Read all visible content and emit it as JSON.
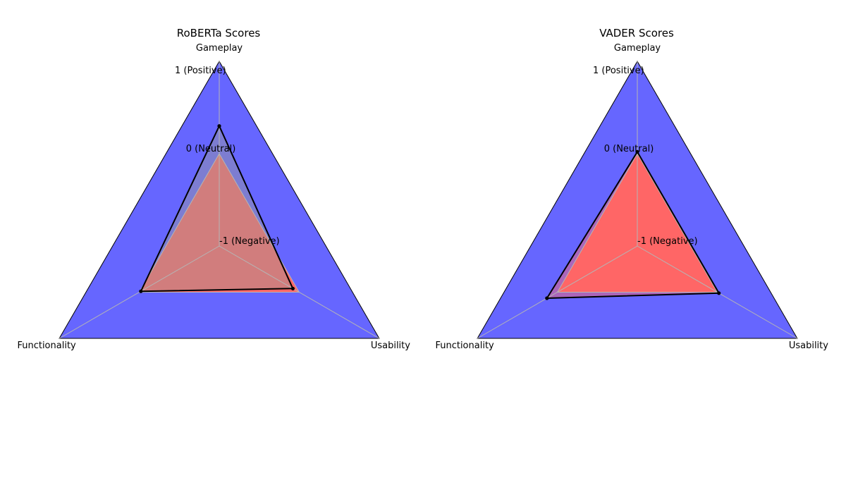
{
  "chart_data": [
    {
      "type": "radar",
      "title": "RoBERTa Scores",
      "axes": [
        "Gameplay",
        "Usability",
        "Functionality"
      ],
      "range": [
        -1,
        1
      ],
      "tick_values": [
        -1,
        0,
        1
      ],
      "tick_labels": [
        "-1 (Negative)",
        "0 (Neutral)",
        "1 (Positive)"
      ],
      "series": [
        {
          "values": [
            0.3,
            -0.08,
            -0.02
          ],
          "style": "black line with dots"
        }
      ],
      "background_fill": {
        "color": "#6666ff",
        "value": 1
      },
      "neutral_fill": {
        "color": "#ff6666",
        "value": 0
      },
      "overlay_fill": {
        "color": "#999999",
        "opacity": 0.45
      }
    },
    {
      "type": "radar",
      "title": "VADER Scores",
      "axes": [
        "Gameplay",
        "Usability",
        "Functionality"
      ],
      "range": [
        -1,
        1
      ],
      "tick_values": [
        -1,
        0,
        1
      ],
      "tick_labels": [
        "-1 (Negative)",
        "0 (Neutral)",
        "1 (Positive)"
      ],
      "series": [
        {
          "values": [
            0.02,
            0.02,
            0.13
          ],
          "style": "black line with dots"
        }
      ],
      "background_fill": {
        "color": "#6666ff",
        "value": 1
      },
      "neutral_fill": {
        "color": "#ff6666",
        "value": 0
      },
      "overlay_fill": {
        "color": "#ff6666",
        "opacity": 0.45
      }
    }
  ]
}
